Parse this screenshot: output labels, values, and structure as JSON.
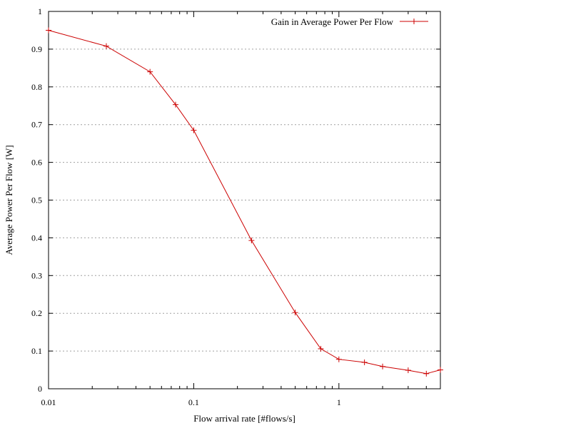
{
  "chart_data": {
    "type": "line",
    "title": "",
    "xlabel": "Flow arrival rate [#flows/s]",
    "ylabel": "Average Power Per Flow [W]",
    "x_scale": "log",
    "xlim": [
      0.01,
      5
    ],
    "ylim": [
      0,
      1
    ],
    "grid": {
      "x": false,
      "y": true,
      "style": "dotted"
    },
    "legend_position": "top-right",
    "x_ticks": [
      {
        "value": 0.01,
        "label": "0.01"
      },
      {
        "value": 0.1,
        "label": "0.1"
      },
      {
        "value": 1,
        "label": "1"
      }
    ],
    "x_minor_ticks": [
      0.02,
      0.03,
      0.04,
      0.05,
      0.06,
      0.07,
      0.08,
      0.09,
      0.2,
      0.3,
      0.4,
      0.5,
      0.6,
      0.7,
      0.8,
      0.9,
      2,
      3,
      4
    ],
    "y_ticks": [
      {
        "value": 0,
        "label": "0"
      },
      {
        "value": 0.1,
        "label": "0.1"
      },
      {
        "value": 0.2,
        "label": "0.2"
      },
      {
        "value": 0.3,
        "label": "0.3"
      },
      {
        "value": 0.4,
        "label": "0.4"
      },
      {
        "value": 0.5,
        "label": "0.5"
      },
      {
        "value": 0.6,
        "label": "0.6"
      },
      {
        "value": 0.7,
        "label": "0.7"
      },
      {
        "value": 0.8,
        "label": "0.8"
      },
      {
        "value": 0.9,
        "label": "0.9"
      },
      {
        "value": 1,
        "label": "1"
      }
    ],
    "series": [
      {
        "name": "Gain in Average Power Per Flow",
        "color": "#cc0000",
        "marker": "plus",
        "x": [
          0.01,
          0.025,
          0.05,
          0.075,
          0.1,
          0.25,
          0.5,
          0.75,
          1,
          1.5,
          2,
          3,
          4,
          5
        ],
        "y": [
          0.95,
          0.908,
          0.84,
          0.753,
          0.685,
          0.393,
          0.202,
          0.106,
          0.078,
          0.07,
          0.059,
          0.049,
          0.04,
          0.05
        ]
      }
    ]
  }
}
